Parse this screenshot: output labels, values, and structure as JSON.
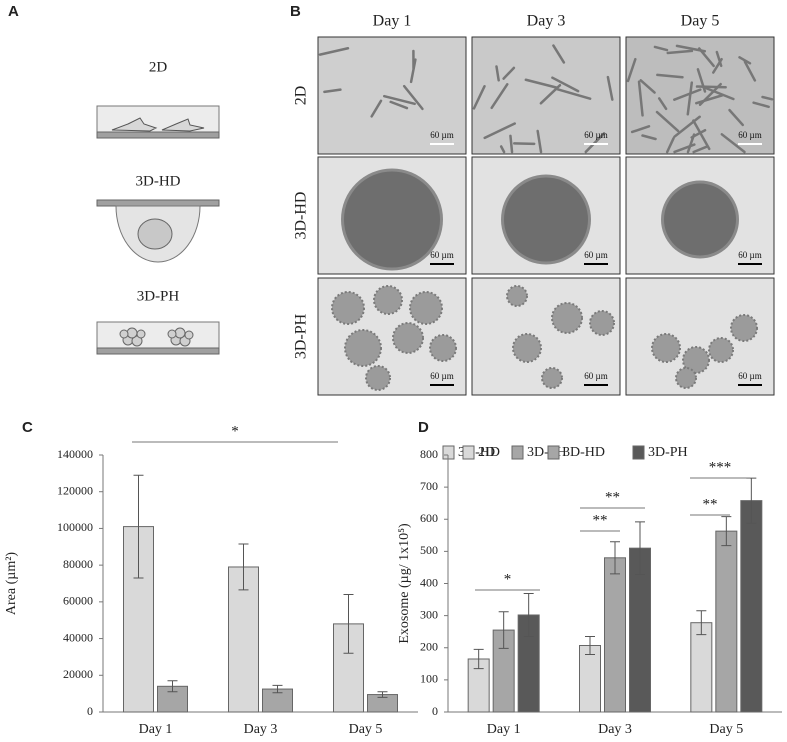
{
  "panel_labels": [
    "A",
    "B",
    "C",
    "D"
  ],
  "culture_diagram": {
    "labels": [
      "2D",
      "3D-HD",
      "3D-PH"
    ]
  },
  "microscopy": {
    "columns": [
      "Day 1",
      "Day 3",
      "Day 5"
    ],
    "rows": [
      "2D",
      "3D-HD",
      "3D-PH"
    ],
    "scale_bars": [
      [
        "60 µm",
        "60 µm",
        "60 µm"
      ],
      [
        "60 µm",
        "60 µm",
        "60 µm"
      ],
      [
        "60 µm",
        "60 µm",
        "60 µm"
      ]
    ]
  },
  "chart_data": [
    {
      "type": "bar",
      "ylabel": "Area (µm²)",
      "categories": [
        "Day 1",
        "Day 3",
        "Day 5"
      ],
      "series": [
        {
          "name": "3D-HD",
          "color": "#d9d9d9",
          "values": [
            101000,
            79000,
            48000
          ],
          "errors": [
            28000,
            12500,
            16000
          ]
        },
        {
          "name": "3D-PH",
          "color": "#a6a6a6",
          "values": [
            14000,
            12500,
            9500
          ],
          "errors": [
            3000,
            2000,
            1500
          ]
        }
      ],
      "ylim": [
        0,
        140000
      ],
      "yticks": [
        0,
        20000,
        40000,
        60000,
        80000,
        100000,
        120000,
        140000
      ],
      "legend": "top-right",
      "annotations": [
        {
          "text": "*"
        }
      ]
    },
    {
      "type": "bar",
      "ylabel": "Exosome (µg/ 1x10⁵)",
      "categories": [
        "Day 1",
        "Day 3",
        "Day 5"
      ],
      "series": [
        {
          "name": "2D",
          "color": "#d9d9d9",
          "values": [
            165,
            207,
            278
          ],
          "errors": [
            30,
            28,
            37
          ]
        },
        {
          "name": "3D-HD",
          "color": "#a6a6a6",
          "values": [
            255,
            480,
            563
          ],
          "errors": [
            57,
            50,
            45
          ]
        },
        {
          "name": "3D-PH",
          "color": "#595959",
          "values": [
            302,
            510,
            658
          ],
          "errors": [
            67,
            82,
            70
          ]
        }
      ],
      "ylim": [
        0,
        800
      ],
      "yticks": [
        0,
        100,
        200,
        300,
        400,
        500,
        600,
        700,
        800
      ],
      "legend": "top-right",
      "annotations": [
        {
          "text": "*"
        },
        {
          "text": "**"
        },
        {
          "text": "**"
        },
        {
          "text": "**"
        },
        {
          "text": "***"
        }
      ]
    }
  ]
}
